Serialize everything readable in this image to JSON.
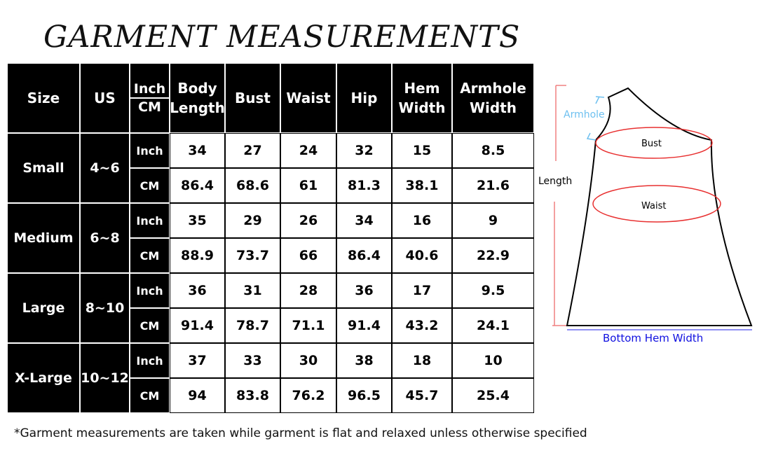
{
  "title": "GARMENT MEASUREMENTS",
  "table": {
    "headers": {
      "size": "Size",
      "us": "US",
      "unit_inch": "Inch",
      "unit_cm": "CM",
      "cols": [
        "Body Length",
        "Bust",
        "Waist",
        "Hip",
        "Hem Width",
        "Armhole Width"
      ]
    },
    "rows": [
      {
        "size": "Small",
        "us": "4~6",
        "inch": [
          "34",
          "27",
          "24",
          "32",
          "15",
          "8.5"
        ],
        "cm": [
          "86.4",
          "68.6",
          "61",
          "81.3",
          "38.1",
          "21.6"
        ]
      },
      {
        "size": "Medium",
        "us": "6~8",
        "inch": [
          "35",
          "29",
          "26",
          "34",
          "16",
          "9"
        ],
        "cm": [
          "88.9",
          "73.7",
          "66",
          "86.4",
          "40.6",
          "22.9"
        ]
      },
      {
        "size": "Large",
        "us": "8~10",
        "inch": [
          "36",
          "31",
          "28",
          "36",
          "17",
          "9.5"
        ],
        "cm": [
          "91.4",
          "78.7",
          "71.1",
          "91.4",
          "43.2",
          "24.1"
        ]
      },
      {
        "size": "X-Large",
        "us": "10~12",
        "inch": [
          "37",
          "33",
          "30",
          "38",
          "18",
          "10"
        ],
        "cm": [
          "94",
          "83.8",
          "76.2",
          "96.5",
          "45.7",
          "25.4"
        ]
      }
    ],
    "unit_labels": {
      "inch": "Inch",
      "cm": "CM"
    }
  },
  "diagram": {
    "armhole": "Armhole",
    "bust": "Bust",
    "length": "Length",
    "waist": "Waist",
    "hem": "Bottom Hem Width",
    "colors": {
      "armhole": "#6ec0f0",
      "ellipse": "#e83030",
      "length": "#f08080",
      "hem": "#1010e0"
    }
  },
  "note": "*Garment measurements are taken while garment is flat and relaxed unless otherwise specified"
}
